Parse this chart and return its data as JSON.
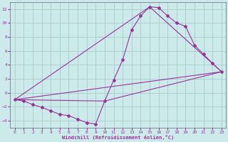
{
  "xlabel": "Windchill (Refroidissement éolien,°C)",
  "bg_color": "#cceaea",
  "grid_color": "#aacccc",
  "line_color": "#993399",
  "xlim": [
    -0.5,
    23.5
  ],
  "ylim": [
    -5,
    13
  ],
  "xticks": [
    0,
    1,
    2,
    3,
    4,
    5,
    6,
    7,
    8,
    9,
    10,
    11,
    12,
    13,
    14,
    15,
    16,
    17,
    18,
    19,
    20,
    21,
    22,
    23
  ],
  "yticks": [
    -4,
    -2,
    0,
    2,
    4,
    6,
    8,
    10,
    12
  ],
  "main_x": [
    0,
    1,
    2,
    3,
    4,
    5,
    6,
    7,
    8,
    9,
    10,
    11,
    12,
    13,
    14,
    15,
    16,
    17,
    18,
    19,
    20,
    21,
    22,
    23
  ],
  "main_y": [
    -1,
    -1.2,
    -1.7,
    -2.1,
    -2.6,
    -3.1,
    -3.3,
    -3.8,
    -4.3,
    -4.5,
    -1.2,
    1.8,
    4.7,
    9.0,
    11.0,
    12.3,
    12.2,
    11.0,
    10.0,
    9.5,
    6.8,
    5.5,
    4.2,
    3.0
  ],
  "line1_x": [
    0,
    23
  ],
  "line1_y": [
    -1,
    3.0
  ],
  "line2_x": [
    0,
    15,
    23
  ],
  "line2_y": [
    -1,
    12.3,
    3.0
  ],
  "line3_x": [
    0,
    10,
    23
  ],
  "line3_y": [
    -1,
    -1.2,
    3.0
  ]
}
